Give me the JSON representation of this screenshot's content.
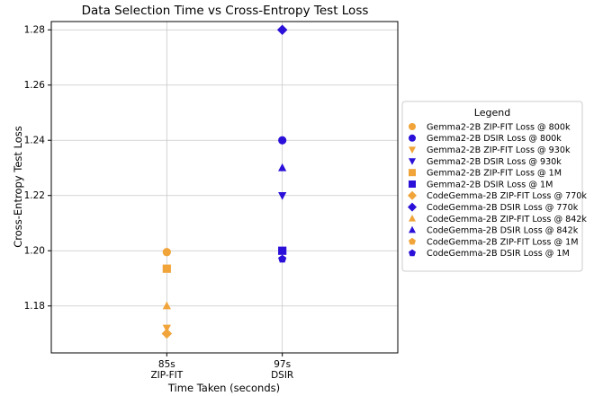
{
  "chart_data": {
    "type": "scatter",
    "title": "Data Selection Time vs Cross-Entropy Test Loss",
    "xlabel": "Time Taken (seconds)",
    "ylabel": "Cross-Entropy Test Loss",
    "ylim": [
      1.163,
      1.283
    ],
    "yticks": [
      1.18,
      1.2,
      1.22,
      1.24,
      1.26,
      1.28
    ],
    "ytick_labels": [
      "1.18",
      "1.20",
      "1.22",
      "1.24",
      "1.26",
      "1.28"
    ],
    "xlim": [
      0,
      3
    ],
    "x_categories": [
      {
        "pos": 1,
        "line1": "85s",
        "line2": "ZIP-FIT"
      },
      {
        "pos": 2,
        "line1": "97s",
        "line2": "DSIR"
      }
    ],
    "grid": true,
    "legend": {
      "title": "Legend",
      "placement": "outside-right"
    },
    "colors": {
      "zipfit": "#f0a43a",
      "dsir": "#2a10d8"
    },
    "series": [
      {
        "name": "Gemma2-2B ZIP-FIT Loss @ 800k",
        "marker": "circle",
        "color": "zipfit",
        "x": 1,
        "y": 1.1995
      },
      {
        "name": "Gemma2-2B DSIR Loss @ 800k",
        "marker": "circle",
        "color": "dsir",
        "x": 2,
        "y": 1.24
      },
      {
        "name": "Gemma2-2B ZIP-FIT Loss @ 930k",
        "marker": "triangle-down",
        "color": "zipfit",
        "x": 1,
        "y": 1.172
      },
      {
        "name": "Gemma2-2B DSIR Loss @ 930k",
        "marker": "triangle-down",
        "color": "dsir",
        "x": 2,
        "y": 1.22
      },
      {
        "name": "Gemma2-2B ZIP-FIT Loss @ 1M",
        "marker": "square",
        "color": "zipfit",
        "x": 1,
        "y": 1.1935
      },
      {
        "name": "Gemma2-2B DSIR Loss @ 1M",
        "marker": "square",
        "color": "dsir",
        "x": 2,
        "y": 1.2
      },
      {
        "name": "CodeGemma-2B ZIP-FIT Loss @ 770k",
        "marker": "diamond",
        "color": "zipfit",
        "x": 1,
        "y": 1.17
      },
      {
        "name": "CodeGemma-2B DSIR Loss @ 770k",
        "marker": "diamond",
        "color": "dsir",
        "x": 2,
        "y": 1.28
      },
      {
        "name": "CodeGemma-2B ZIP-FIT Loss @ 842k",
        "marker": "triangle-up",
        "color": "zipfit",
        "x": 1,
        "y": 1.18
      },
      {
        "name": "CodeGemma-2B DSIR Loss @ 842k",
        "marker": "triangle-up",
        "color": "dsir",
        "x": 2,
        "y": 1.23
      },
      {
        "name": "CodeGemma-2B ZIP-FIT Loss @ 1M",
        "marker": "pentagon",
        "color": "zipfit",
        "x": 1,
        "y": 1.1995
      },
      {
        "name": "CodeGemma-2B DSIR Loss @ 1M",
        "marker": "pentagon",
        "color": "dsir",
        "x": 2,
        "y": 1.197
      }
    ]
  }
}
